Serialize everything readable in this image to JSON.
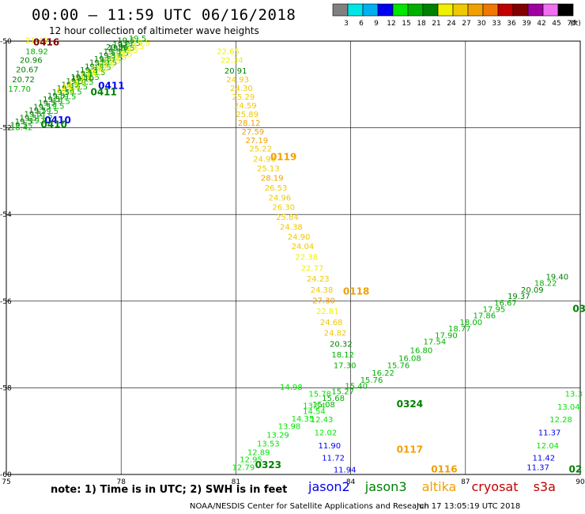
{
  "header": {
    "title": "00:00 – 11:59 UTC 06/16/2018",
    "subtitle": "12 hour collection of altimeter wave heights"
  },
  "colorbar": {
    "labels": [
      "3",
      "6",
      "9",
      "12",
      "15",
      "18",
      "21",
      "24",
      "27",
      "30",
      "33",
      "36",
      "39",
      "42",
      "45",
      "70"
    ],
    "unit": "(ft)",
    "colors": [
      "#808080",
      "#00e6e6",
      "#00b0f0",
      "#0000f0",
      "#00e600",
      "#00b000",
      "#008000",
      "#f0f000",
      "#f0c800",
      "#f0a000",
      "#f07800",
      "#c00000",
      "#800000",
      "#a000a0",
      "#f070f0",
      "#000000"
    ]
  },
  "map": {
    "lon_range": [
      75,
      90
    ],
    "lat_range": [
      -60,
      -50
    ],
    "x_ticks": [
      "75",
      "78",
      "81",
      "84",
      "87",
      "90"
    ],
    "y_ticks": [
      "-50",
      "-52",
      "-54",
      "-56",
      "-58",
      "-60"
    ],
    "grid": true
  },
  "tracks": [
    {
      "id": "0416",
      "sat": "cryosat",
      "color": "#800000",
      "label_lon": 75.7,
      "label_lat": -50.1
    },
    {
      "id": "0411",
      "sat": "jason2",
      "color": "#0000f0",
      "label_lon": 77.4,
      "label_lat": -51.1
    },
    {
      "id": "0411",
      "sat": "jason3",
      "color": "#008000",
      "label_lon": 77.2,
      "label_lat": -51.25
    },
    {
      "id": "0410",
      "sat": "jason2",
      "color": "#0000f0",
      "label_lon": 76.0,
      "label_lat": -51.9
    },
    {
      "id": "0410",
      "sat": "jason3",
      "color": "#008000",
      "label_lon": 75.9,
      "label_lat": -52.0
    },
    {
      "id": "0119",
      "sat": "altika",
      "color": "#f0a000",
      "label_lon": 81.9,
      "label_lat": -52.75
    },
    {
      "id": "0118",
      "sat": "altika",
      "color": "#f0a000",
      "label_lon": 83.8,
      "label_lat": -55.85
    },
    {
      "id": "0324",
      "sat": "jason3",
      "color": "#008000",
      "label_lon": 85.2,
      "label_lat": -58.45
    },
    {
      "id": "0117",
      "sat": "altika",
      "color": "#f0a000",
      "label_lon": 85.2,
      "label_lat": -59.5
    },
    {
      "id": "0323",
      "sat": "jason3",
      "color": "#008000",
      "label_lon": 81.5,
      "label_lat": -59.85
    },
    {
      "id": "0116",
      "sat": "altika",
      "color": "#f0a000",
      "label_lon": 86.1,
      "label_lat": -59.95
    },
    {
      "id": "02",
      "sat": "jason3",
      "color": "#008000",
      "label_lon": 89.7,
      "label_lat": -59.95
    },
    {
      "id": "03",
      "sat": "jason3",
      "color": "#008000",
      "label_lon": 89.8,
      "label_lat": -56.25
    }
  ],
  "observations": [
    {
      "v": "21.40",
      "lon": 75.5,
      "lat": -50.05,
      "c": "#f0f000"
    },
    {
      "v": "18.92",
      "lon": 75.5,
      "lat": -50.3,
      "c": "#00b000"
    },
    {
      "v": "20.96",
      "lon": 75.35,
      "lat": -50.5,
      "c": "#008000"
    },
    {
      "v": "20.67",
      "lon": 75.25,
      "lat": -50.72,
      "c": "#008000"
    },
    {
      "v": "20.72",
      "lon": 75.15,
      "lat": -50.95,
      "c": "#008000"
    },
    {
      "v": "17.70",
      "lon": 75.05,
      "lat": -51.17,
      "c": "#00b000"
    },
    {
      "v": "19.10",
      "lon": 76.7,
      "lat": -50.92,
      "c": "#008000"
    },
    {
      "v": "18.42",
      "lon": 75.1,
      "lat": -52.05,
      "c": "#00b000"
    },
    {
      "v": "20.56",
      "lon": 77.6,
      "lat": -50.2,
      "c": "#008000"
    },
    {
      "v": "22.65",
      "lon": 80.5,
      "lat": -50.3,
      "c": "#f0f000"
    },
    {
      "v": "22.34",
      "lon": 80.6,
      "lat": -50.5,
      "c": "#f0f000"
    },
    {
      "v": "20.91",
      "lon": 80.7,
      "lat": -50.75,
      "c": "#008000"
    },
    {
      "v": "24.93",
      "lon": 80.75,
      "lat": -50.95,
      "c": "#f0c800"
    },
    {
      "v": "24.30",
      "lon": 80.85,
      "lat": -51.15,
      "c": "#f0c800"
    },
    {
      "v": "25.29",
      "lon": 80.9,
      "lat": -51.35,
      "c": "#f0c800"
    },
    {
      "v": "24.59",
      "lon": 80.95,
      "lat": -51.55,
      "c": "#f0c800"
    },
    {
      "v": "25.89",
      "lon": 81.0,
      "lat": -51.75,
      "c": "#f0c800"
    },
    {
      "v": "28.12",
      "lon": 81.05,
      "lat": -51.95,
      "c": "#f0a000"
    },
    {
      "v": "27.59",
      "lon": 81.15,
      "lat": -52.15,
      "c": "#f0a000"
    },
    {
      "v": "27.19",
      "lon": 81.25,
      "lat": -52.35,
      "c": "#f0a000"
    },
    {
      "v": "25.22",
      "lon": 81.35,
      "lat": -52.55,
      "c": "#f0c800"
    },
    {
      "v": "24.96",
      "lon": 81.45,
      "lat": -52.78,
      "c": "#f0c800"
    },
    {
      "v": "25.13",
      "lon": 81.55,
      "lat": -53.0,
      "c": "#f0c800"
    },
    {
      "v": "28.19",
      "lon": 81.65,
      "lat": -53.22,
      "c": "#f0a000"
    },
    {
      "v": "26.53",
      "lon": 81.75,
      "lat": -53.45,
      "c": "#f0c800"
    },
    {
      "v": "24.96",
      "lon": 81.85,
      "lat": -53.68,
      "c": "#f0c800"
    },
    {
      "v": "26.30",
      "lon": 81.95,
      "lat": -53.9,
      "c": "#f0c800"
    },
    {
      "v": "25.84",
      "lon": 82.05,
      "lat": -54.12,
      "c": "#f0c800"
    },
    {
      "v": "24.38",
      "lon": 82.15,
      "lat": -54.35,
      "c": "#f0c800"
    },
    {
      "v": "24.90",
      "lon": 82.35,
      "lat": -54.58,
      "c": "#f0c800"
    },
    {
      "v": "24.04",
      "lon": 82.45,
      "lat": -54.8,
      "c": "#f0c800"
    },
    {
      "v": "22.38",
      "lon": 82.55,
      "lat": -55.05,
      "c": "#f0f000"
    },
    {
      "v": "22.77",
      "lon": 82.7,
      "lat": -55.3,
      "c": "#f0f000"
    },
    {
      "v": "24.23",
      "lon": 82.85,
      "lat": -55.55,
      "c": "#f0c800"
    },
    {
      "v": "24.38",
      "lon": 82.95,
      "lat": -55.8,
      "c": "#f0c800"
    },
    {
      "v": "27.30",
      "lon": 83.0,
      "lat": -56.05,
      "c": "#f0a000"
    },
    {
      "v": "22.81",
      "lon": 83.1,
      "lat": -56.3,
      "c": "#f0f000"
    },
    {
      "v": "24.68",
      "lon": 83.2,
      "lat": -56.55,
      "c": "#f0c800"
    },
    {
      "v": "24.82",
      "lon": 83.3,
      "lat": -56.8,
      "c": "#f0c800"
    },
    {
      "v": "20.32",
      "lon": 83.45,
      "lat": -57.05,
      "c": "#008000"
    },
    {
      "v": "18.12",
      "lon": 83.5,
      "lat": -57.3,
      "c": "#00b000"
    },
    {
      "v": "17.30",
      "lon": 83.55,
      "lat": -57.55,
      "c": "#00b000"
    },
    {
      "v": "12.79",
      "lon": 80.9,
      "lat": -59.9,
      "c": "#00e600"
    },
    {
      "v": "12.95",
      "lon": 81.1,
      "lat": -59.72,
      "c": "#00e600"
    },
    {
      "v": "12.89",
      "lon": 81.3,
      "lat": -59.55,
      "c": "#00e600"
    },
    {
      "v": "13.53",
      "lon": 81.55,
      "lat": -59.35,
      "c": "#00e600"
    },
    {
      "v": "13.29",
      "lon": 81.8,
      "lat": -59.15,
      "c": "#00e600"
    },
    {
      "v": "13.98",
      "lon": 82.1,
      "lat": -58.95,
      "c": "#00e600"
    },
    {
      "v": "14.35",
      "lon": 82.45,
      "lat": -58.78,
      "c": "#00e600"
    },
    {
      "v": "14.54",
      "lon": 82.75,
      "lat": -58.6,
      "c": "#00e600"
    },
    {
      "v": "15.08",
      "lon": 83.0,
      "lat": -58.45,
      "c": "#00b000"
    },
    {
      "v": "15.68",
      "lon": 83.25,
      "lat": -58.3,
      "c": "#00b000"
    },
    {
      "v": "15.27",
      "lon": 83.5,
      "lat": -58.15,
      "c": "#00b000"
    },
    {
      "v": "15.40",
      "lon": 83.85,
      "lat": -58.02,
      "c": "#00b000"
    },
    {
      "v": "15.76",
      "lon": 84.25,
      "lat": -57.88,
      "c": "#00b000"
    },
    {
      "v": "16.22",
      "lon": 84.55,
      "lat": -57.72,
      "c": "#00b000"
    },
    {
      "v": "15.76",
      "lon": 84.95,
      "lat": -57.55,
      "c": "#00b000"
    },
    {
      "v": "16.08",
      "lon": 85.25,
      "lat": -57.38,
      "c": "#00b000"
    },
    {
      "v": "16.80",
      "lon": 85.55,
      "lat": -57.2,
      "c": "#00b000"
    },
    {
      "v": "17.54",
      "lon": 85.9,
      "lat": -57.0,
      "c": "#00b000"
    },
    {
      "v": "17.90",
      "lon": 86.2,
      "lat": -56.85,
      "c": "#00b000"
    },
    {
      "v": "18.77",
      "lon": 86.55,
      "lat": -56.7,
      "c": "#00b000"
    },
    {
      "v": "18.00",
      "lon": 86.85,
      "lat": -56.55,
      "c": "#00b000"
    },
    {
      "v": "17.86",
      "lon": 87.2,
      "lat": -56.4,
      "c": "#00b000"
    },
    {
      "v": "17.95",
      "lon": 87.45,
      "lat": -56.25,
      "c": "#00b000"
    },
    {
      "v": "16.67",
      "lon": 87.75,
      "lat": -56.1,
      "c": "#00b000"
    },
    {
      "v": "19.37",
      "lon": 88.1,
      "lat": -55.95,
      "c": "#008000"
    },
    {
      "v": "20.09",
      "lon": 88.45,
      "lat": -55.8,
      "c": "#008000"
    },
    {
      "v": "18.22",
      "lon": 88.8,
      "lat": -55.65,
      "c": "#00b000"
    },
    {
      "v": "19.40",
      "lon": 89.1,
      "lat": -55.5,
      "c": "#008000"
    },
    {
      "v": "14.98",
      "lon": 82.15,
      "lat": -58.05,
      "c": "#00e600"
    },
    {
      "v": "15.78",
      "lon": 82.9,
      "lat": -58.2,
      "c": "#00e600"
    },
    {
      "v": "13.54",
      "lon": 82.75,
      "lat": -58.48,
      "c": "#00e600"
    },
    {
      "v": "12.43",
      "lon": 82.95,
      "lat": -58.8,
      "c": "#00e600"
    },
    {
      "v": "12.02",
      "lon": 83.05,
      "lat": -59.1,
      "c": "#00e600"
    },
    {
      "v": "11.90",
      "lon": 83.15,
      "lat": -59.4,
      "c": "#0000f0"
    },
    {
      "v": "11.72",
      "lon": 83.25,
      "lat": -59.68,
      "c": "#0000f0"
    },
    {
      "v": "11.94",
      "lon": 83.55,
      "lat": -59.95,
      "c": "#0000f0"
    },
    {
      "v": "13.3",
      "lon": 89.6,
      "lat": -58.2,
      "c": "#00e600"
    },
    {
      "v": "13.04",
      "lon": 89.4,
      "lat": -58.5,
      "c": "#00e600"
    },
    {
      "v": "12.28",
      "lon": 89.2,
      "lat": -58.8,
      "c": "#00e600"
    },
    {
      "v": "11.37",
      "lon": 88.9,
      "lat": -59.1,
      "c": "#0000f0"
    },
    {
      "v": "12.04",
      "lon": 88.85,
      "lat": -59.4,
      "c": "#00e600"
    },
    {
      "v": "11.42",
      "lon": 88.75,
      "lat": -59.68,
      "c": "#0000f0"
    },
    {
      "v": "11.37",
      "lon": 88.6,
      "lat": -59.9,
      "c": "#0000f0"
    }
  ],
  "noise_tracks": [
    {
      "from": [
        75.1,
        -52.0
      ],
      "to": [
        77.9,
        -50.05
      ],
      "color": "#008000",
      "n": 24
    },
    {
      "from": [
        75.6,
        -51.9
      ],
      "to": [
        78.2,
        -50.0
      ],
      "color": "#00b000",
      "n": 18
    },
    {
      "from": [
        76.3,
        -51.2
      ],
      "to": [
        78.3,
        -50.1
      ],
      "color": "#f0f000",
      "n": 14
    }
  ],
  "footer": {
    "note": "note: 1) Time is in UTC; 2) SWH is in feet",
    "legend": [
      {
        "name": "jason2",
        "color": "#0000f0"
      },
      {
        "name": "jason3",
        "color": "#008000"
      },
      {
        "name": "altika",
        "color": "#f0a000"
      },
      {
        "name": "cryosat",
        "color": "#c00000"
      },
      {
        "name": "s3a",
        "color": "#c00000"
      }
    ],
    "credit": "NOAA/NESDIS Center for Satellite Applications and Research",
    "timestamp": "Jun 17 13:05:19 UTC 2018"
  }
}
